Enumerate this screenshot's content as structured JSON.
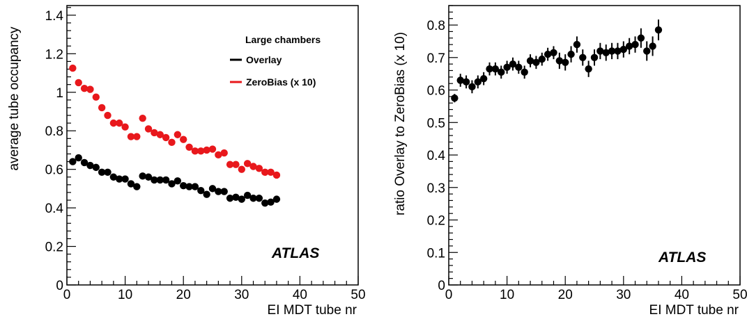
{
  "chart_data": [
    {
      "type": "scatter",
      "title": "",
      "xlabel": "EI MDT tube nr",
      "ylabel": "average tube occupancy",
      "xlim": [
        0,
        50
      ],
      "ylim": [
        0,
        1.45
      ],
      "xticks": [
        "0",
        "10",
        "20",
        "30",
        "40",
        "50"
      ],
      "yticks": [
        "0",
        "0.2",
        "0.4",
        "0.6",
        "0.8",
        "1",
        "1.2",
        "1.4"
      ],
      "grid": false,
      "legend_title": "Large chambers",
      "legend_placement": "top-right",
      "annotation": "ATLAS",
      "series": [
        {
          "name": "Overlay",
          "color": "#000000",
          "x": [
            1,
            2,
            3,
            4,
            5,
            6,
            7,
            8,
            9,
            10,
            11,
            12,
            13,
            14,
            15,
            16,
            17,
            18,
            19,
            20,
            21,
            22,
            23,
            24,
            25,
            26,
            27,
            28,
            29,
            30,
            31,
            32,
            33,
            34,
            35,
            36
          ],
          "y": [
            0.64,
            0.66,
            0.635,
            0.62,
            0.61,
            0.585,
            0.585,
            0.56,
            0.55,
            0.55,
            0.525,
            0.51,
            0.565,
            0.56,
            0.545,
            0.545,
            0.545,
            0.525,
            0.54,
            0.515,
            0.51,
            0.51,
            0.49,
            0.47,
            0.5,
            0.485,
            0.485,
            0.45,
            0.455,
            0.445,
            0.465,
            0.45,
            0.45,
            0.425,
            0.43,
            0.445
          ]
        },
        {
          "name": "ZeroBias (x 10)",
          "color": "#e8181c",
          "x": [
            1,
            2,
            3,
            4,
            5,
            6,
            7,
            8,
            9,
            10,
            11,
            12,
            13,
            14,
            15,
            16,
            17,
            18,
            19,
            20,
            21,
            22,
            23,
            24,
            25,
            26,
            27,
            28,
            29,
            30,
            31,
            32,
            33,
            34,
            35,
            36
          ],
          "y": [
            1.125,
            1.05,
            1.02,
            1.015,
            0.975,
            0.92,
            0.88,
            0.84,
            0.84,
            0.82,
            0.77,
            0.77,
            0.865,
            0.81,
            0.79,
            0.78,
            0.765,
            0.74,
            0.78,
            0.755,
            0.715,
            0.695,
            0.695,
            0.7,
            0.705,
            0.675,
            0.685,
            0.625,
            0.625,
            0.6,
            0.63,
            0.615,
            0.605,
            0.585,
            0.585,
            0.57
          ]
        }
      ]
    },
    {
      "type": "scatter",
      "title": "",
      "xlabel": "EI MDT tube nr",
      "ylabel": "ratio Overlay to ZeroBias (x 10)",
      "xlim": [
        0,
        50
      ],
      "ylim": [
        0,
        0.86
      ],
      "xticks": [
        "0",
        "10",
        "20",
        "30",
        "40",
        "50"
      ],
      "yticks": [
        "0",
        "0.1",
        "0.2",
        "0.3",
        "0.4",
        "0.5",
        "0.6",
        "0.7",
        "0.8"
      ],
      "grid": false,
      "annotation": "ATLAS",
      "series": [
        {
          "color": "#000000",
          "x": [
            1,
            2,
            3,
            4,
            5,
            6,
            7,
            8,
            9,
            10,
            11,
            12,
            13,
            14,
            15,
            16,
            17,
            18,
            19,
            20,
            21,
            22,
            23,
            24,
            25,
            26,
            27,
            28,
            29,
            30,
            31,
            32,
            33,
            34,
            35,
            36
          ],
          "y": [
            0.575,
            0.63,
            0.625,
            0.61,
            0.625,
            0.635,
            0.665,
            0.665,
            0.655,
            0.67,
            0.68,
            0.67,
            0.655,
            0.69,
            0.685,
            0.695,
            0.71,
            0.715,
            0.69,
            0.685,
            0.71,
            0.74,
            0.7,
            0.665,
            0.7,
            0.72,
            0.715,
            0.72,
            0.72,
            0.725,
            0.735,
            0.74,
            0.76,
            0.72,
            0.735,
            0.785
          ],
          "err": [
            0.013,
            0.02,
            0.02,
            0.02,
            0.02,
            0.02,
            0.02,
            0.02,
            0.02,
            0.02,
            0.02,
            0.02,
            0.02,
            0.02,
            0.02,
            0.02,
            0.02,
            0.02,
            0.025,
            0.025,
            0.025,
            0.025,
            0.025,
            0.025,
            0.025,
            0.025,
            0.025,
            0.025,
            0.025,
            0.025,
            0.025,
            0.025,
            0.03,
            0.03,
            0.03,
            0.032
          ]
        }
      ]
    }
  ]
}
